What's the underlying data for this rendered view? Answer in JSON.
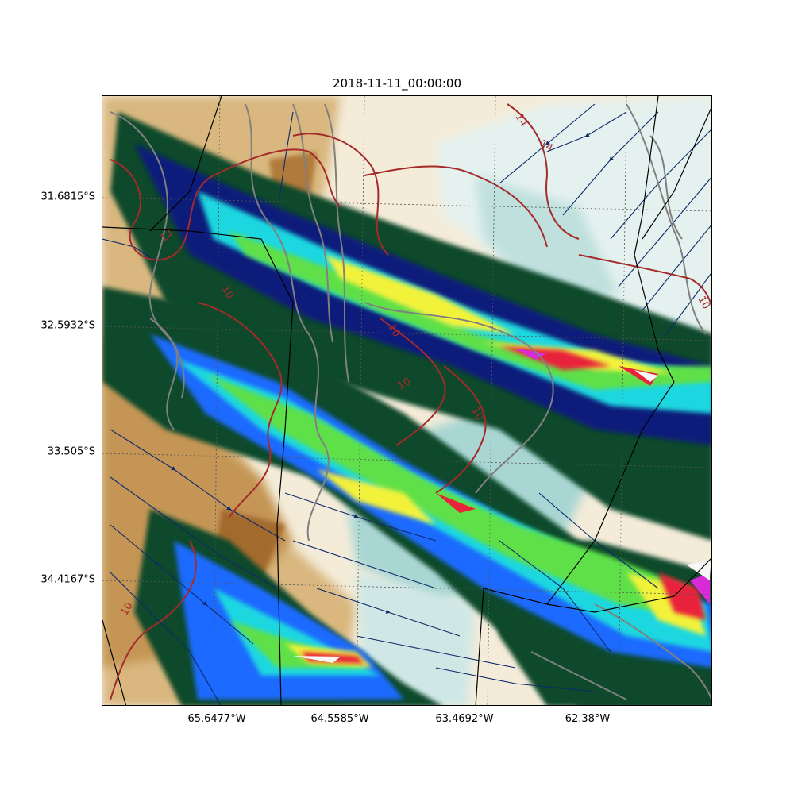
{
  "title": "2018-11-11_00:00:00",
  "latitude_labels": [
    "31.6815°S",
    "32.5932°S",
    "33.505°S",
    "34.4167°S"
  ],
  "longitude_labels": [
    "65.6477°W",
    "64.5585°W",
    "63.4692°W",
    "62.38°W"
  ],
  "contour_labels": [
    "14",
    "14",
    "14",
    "10",
    "10",
    "10",
    "10",
    "10",
    "10"
  ],
  "colors": {
    "terrain_high": "#b07a3a",
    "terrain_mid": "#d9b77f",
    "terrain_low": "#f5ecd8",
    "lowland_teal": "#a9d6d3",
    "precip_dark": "#0a4a2a",
    "precip_navy": "#0b1f7a",
    "precip_blue": "#1e6bff",
    "precip_cyan": "#1fd7e0",
    "precip_green": "#5ee04a",
    "precip_yellow": "#f2f23a",
    "precip_red": "#e8243a",
    "precip_magenta": "#d82bd8",
    "contour_red": "#a52a2a",
    "contour_gray": "#808080",
    "streamline": "#0d2a6b",
    "border": "#000000"
  }
}
